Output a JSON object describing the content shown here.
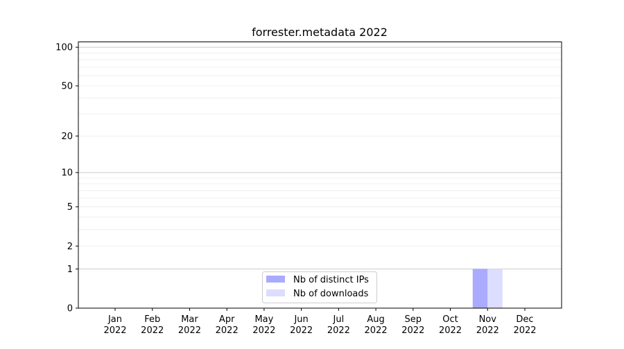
{
  "chart_data": {
    "type": "bar",
    "title": "forrester.metadata 2022",
    "xlabel": "",
    "ylabel": "",
    "yscale": "log(1+y)",
    "ylim": [
      0,
      111
    ],
    "yticks": [
      0,
      1,
      2,
      5,
      10,
      20,
      50,
      100
    ],
    "grid": true,
    "legend_placement": "lower-center",
    "categories": [
      "Jan\n2022",
      "Feb\n2022",
      "Mar\n2022",
      "Apr\n2022",
      "May\n2022",
      "Jun\n2022",
      "Jul\n2022",
      "Aug\n2022",
      "Sep\n2022",
      "Oct\n2022",
      "Nov\n2022",
      "Dec\n2022"
    ],
    "series": [
      {
        "name": "Nb of distinct IPs",
        "color": "#aaaaff",
        "values": [
          0,
          0,
          0,
          0,
          0,
          0,
          0,
          0,
          0,
          0,
          1,
          0
        ]
      },
      {
        "name": "Nb of downloads",
        "color": "#ddddff",
        "values": [
          0,
          0,
          0,
          0,
          0,
          0,
          0,
          0,
          0,
          0,
          1,
          0
        ]
      }
    ]
  }
}
